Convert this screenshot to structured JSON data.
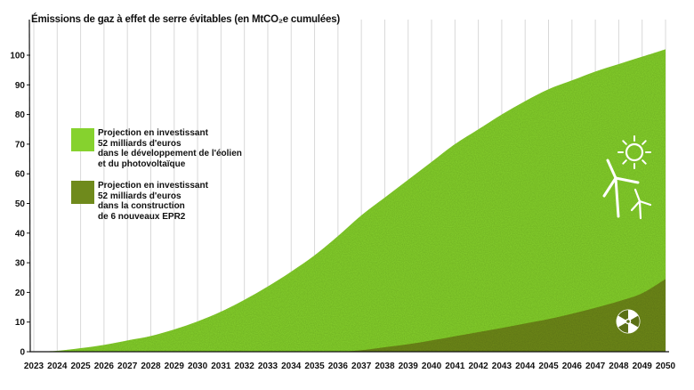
{
  "colors": {
    "renewables": "#86d22e",
    "nuclear": "#6f8a1c",
    "grid": "#d8d8d8",
    "axis": "#111111",
    "icon": "#ffffff"
  },
  "legend": {
    "renewables": [
      "Projection en investissant",
      "52 milliards d'euros",
      "dans le développement de l'éolien",
      "et du photovoltaïque"
    ],
    "nuclear": [
      "Projection en investissant",
      "52 milliards d'euros",
      "dans la construction",
      "de 6 nouveaux EPR2"
    ]
  },
  "icons": {
    "renewables": [
      "sun-icon",
      "wind-turbine-icon"
    ],
    "nuclear": [
      "radiation-icon"
    ]
  },
  "chart_data": {
    "type": "area",
    "title": "Émissions de gaz à effet de serre évitables (en MtCO₂e cumulées)",
    "xlabel": "",
    "ylabel": "",
    "x": [
      2023,
      2024,
      2025,
      2026,
      2027,
      2028,
      2029,
      2030,
      2031,
      2032,
      2033,
      2034,
      2035,
      2036,
      2037,
      2038,
      2039,
      2040,
      2041,
      2042,
      2043,
      2044,
      2045,
      2046,
      2047,
      2048,
      2049,
      2050
    ],
    "ylim": [
      0,
      100
    ],
    "yticks": [
      0,
      10,
      20,
      30,
      40,
      50,
      60,
      70,
      80,
      90,
      100
    ],
    "grid": true,
    "legend_position": "left",
    "stacked": false,
    "series": [
      {
        "name": "Projection en investissant 52 milliards d'euros dans le développement de l'éolien et du photovoltaïque",
        "values": [
          0,
          0.3,
          1.2,
          2.3,
          3.8,
          5.3,
          7.5,
          10.2,
          13.5,
          17.5,
          22,
          27,
          32.5,
          39,
          46,
          52,
          58,
          64,
          70,
          75,
          80,
          84.5,
          88.5,
          91.5,
          94.5,
          97,
          99.5,
          102
        ]
      },
      {
        "name": "Projection en investissant 52 milliards d'euros dans la construction de 6 nouveaux EPR2",
        "values": [
          0,
          0,
          0,
          0,
          0,
          0,
          0,
          0,
          0,
          0,
          0,
          0,
          0,
          0,
          0.5,
          1.5,
          2.5,
          3.8,
          5.2,
          6.6,
          8,
          9.5,
          11,
          12.8,
          14.8,
          17,
          19.7,
          24.5
        ]
      }
    ]
  }
}
